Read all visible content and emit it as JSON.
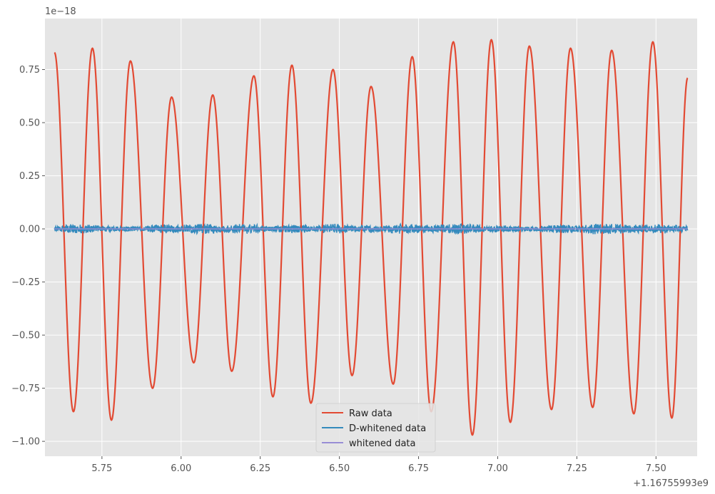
{
  "chart_data": {
    "type": "line",
    "title": "",
    "xlabel": "",
    "ylabel": "",
    "y_scale_label": "1e−18",
    "x_offset_label": "+1.16755993e9",
    "xlim": [
      5.57,
      7.63
    ],
    "ylim": [
      -1.07,
      0.99
    ],
    "grid": true,
    "legend_position": "bottom-center",
    "x_ticks": [
      {
        "value": 5.75,
        "label": "5.75"
      },
      {
        "value": 6.0,
        "label": "6.00"
      },
      {
        "value": 6.25,
        "label": "6.25"
      },
      {
        "value": 6.5,
        "label": "6.50"
      },
      {
        "value": 6.75,
        "label": "6.75"
      },
      {
        "value": 7.0,
        "label": "7.00"
      },
      {
        "value": 7.25,
        "label": "7.25"
      },
      {
        "value": 7.5,
        "label": "7.50"
      }
    ],
    "y_ticks": [
      {
        "value": 0.75,
        "label": "0.75"
      },
      {
        "value": 0.5,
        "label": "0.50"
      },
      {
        "value": 0.25,
        "label": "0.25"
      },
      {
        "value": 0.0,
        "label": "0.00"
      },
      {
        "value": -0.25,
        "label": "−0.25"
      },
      {
        "value": -0.5,
        "label": "−0.50"
      },
      {
        "value": -0.75,
        "label": "−0.75"
      },
      {
        "value": -1.0,
        "label": "−1.00"
      }
    ],
    "series": [
      {
        "name": "Raw data",
        "color": "#e24a33",
        "x_range": [
          5.6,
          7.6
        ],
        "extrema": [
          {
            "x": 5.6,
            "y": 0.83
          },
          {
            "x": 5.66,
            "y": -0.86
          },
          {
            "x": 5.72,
            "y": 0.85
          },
          {
            "x": 5.78,
            "y": -0.9
          },
          {
            "x": 5.84,
            "y": 0.79
          },
          {
            "x": 5.91,
            "y": -0.75
          },
          {
            "x": 5.97,
            "y": 0.62
          },
          {
            "x": 6.04,
            "y": -0.63
          },
          {
            "x": 6.1,
            "y": 0.63
          },
          {
            "x": 6.16,
            "y": -0.67
          },
          {
            "x": 6.23,
            "y": 0.72
          },
          {
            "x": 6.29,
            "y": -0.79
          },
          {
            "x": 6.35,
            "y": 0.77
          },
          {
            "x": 6.41,
            "y": -0.82
          },
          {
            "x": 6.48,
            "y": 0.75
          },
          {
            "x": 6.54,
            "y": -0.69
          },
          {
            "x": 6.6,
            "y": 0.67
          },
          {
            "x": 6.67,
            "y": -0.73
          },
          {
            "x": 6.73,
            "y": 0.81
          },
          {
            "x": 6.79,
            "y": -0.86
          },
          {
            "x": 6.86,
            "y": 0.88
          },
          {
            "x": 6.92,
            "y": -0.97
          },
          {
            "x": 6.98,
            "y": 0.89
          },
          {
            "x": 7.04,
            "y": -0.91
          },
          {
            "x": 7.1,
            "y": 0.86
          },
          {
            "x": 7.17,
            "y": -0.85
          },
          {
            "x": 7.23,
            "y": 0.85
          },
          {
            "x": 7.3,
            "y": -0.84
          },
          {
            "x": 7.36,
            "y": 0.84
          },
          {
            "x": 7.43,
            "y": -0.87
          },
          {
            "x": 7.49,
            "y": 0.88
          },
          {
            "x": 7.55,
            "y": -0.89
          },
          {
            "x": 7.6,
            "y": 0.71
          }
        ]
      },
      {
        "name": "D-whitened data",
        "color": "#348abd",
        "x_range": [
          5.6,
          7.6
        ],
        "approx_amplitude": 0.025,
        "center": 0.0
      },
      {
        "name": "whitened data",
        "color": "#988ed5",
        "x_range": [
          5.6,
          7.6
        ],
        "approx_amplitude": 0.003,
        "center": 0.0
      }
    ]
  }
}
